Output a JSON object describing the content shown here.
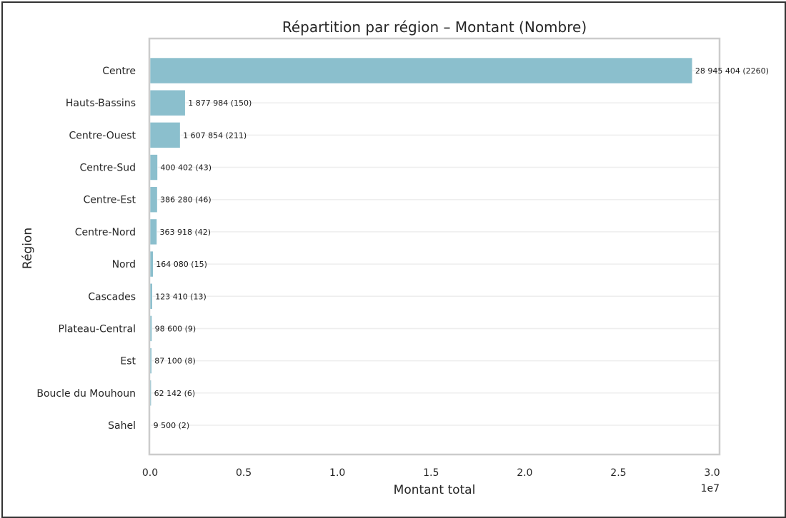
{
  "chart_data": {
    "type": "bar",
    "orientation": "horizontal",
    "title": "Répartition par région – Montant (Nombre)",
    "xlabel": "Montant total",
    "ylabel": "Région",
    "x_offset_label": "1e7",
    "xlim": [
      0,
      30400000
    ],
    "xticks": [
      {
        "value": 0,
        "label": "0.0"
      },
      {
        "value": 5000000,
        "label": "0.5"
      },
      {
        "value": 10000000,
        "label": "1.0"
      },
      {
        "value": 15000000,
        "label": "1.5"
      },
      {
        "value": 20000000,
        "label": "2.0"
      },
      {
        "value": 25000000,
        "label": "2.5"
      },
      {
        "value": 30000000,
        "label": "3.0"
      }
    ],
    "grid": "horizontal",
    "bar_color": "#8bbfcd",
    "categories": [
      "Centre",
      "Hauts-Bassins",
      "Centre-Ouest",
      "Centre-Sud",
      "Centre-Est",
      "Centre-Nord",
      "Nord",
      "Cascades",
      "Plateau-Central",
      "Est",
      "Boucle du Mouhoun",
      "Sahel"
    ],
    "values": [
      28945404,
      1877984,
      1607854,
      400402,
      386280,
      363918,
      164080,
      123410,
      98600,
      87100,
      62142,
      9500
    ],
    "counts": [
      2260,
      150,
      211,
      43,
      46,
      42,
      15,
      13,
      9,
      8,
      6,
      2
    ],
    "data_labels": [
      "28 945 404 (2260)",
      "1 877 984 (150)",
      "1 607 854 (211)",
      "400 402 (43)",
      "386 280 (46)",
      "363 918 (42)",
      "164 080 (15)",
      "123 410 (13)",
      "98 600 (9)",
      "87 100 (8)",
      "62 142 (6)",
      "9 500 (2)"
    ]
  }
}
